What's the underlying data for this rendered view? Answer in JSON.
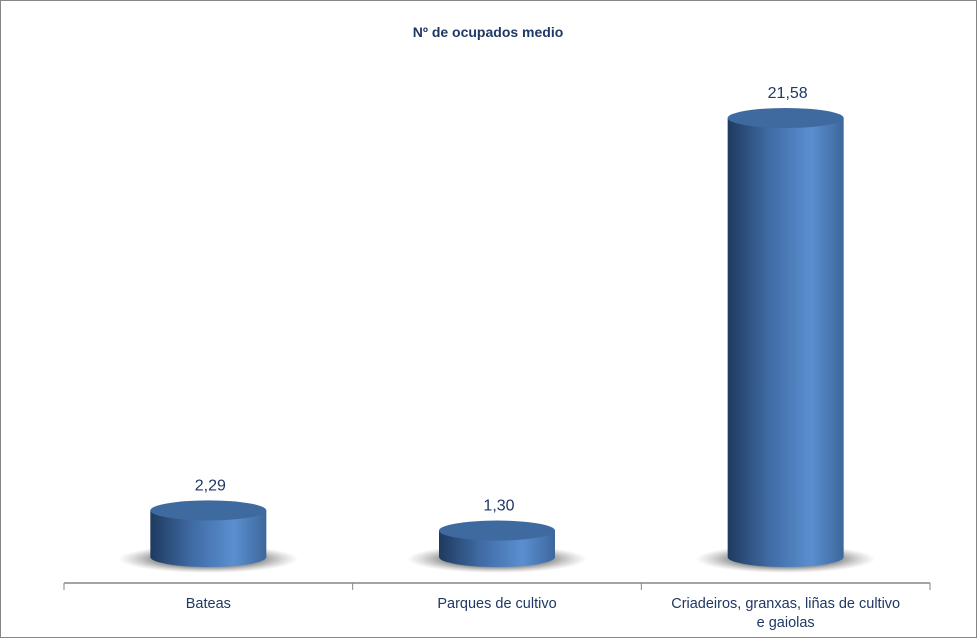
{
  "chart_data": {
    "type": "bar",
    "style": "3d-cylinder",
    "title": "Nº de ocupados medio",
    "categories": [
      "Bateas",
      "Parques de cultivo",
      "Criadeiros, granxas, liñas de cultivo e gaiolas"
    ],
    "category_label_lines": [
      [
        "Bateas"
      ],
      [
        "Parques de cultivo"
      ],
      [
        "Criadeiros, granxas, liñas de cultivo",
        "e gaiolas"
      ]
    ],
    "values": [
      2.29,
      1.3,
      21.58
    ],
    "data_labels": [
      "2,29",
      "1,30",
      "21,58"
    ],
    "xlabel": "",
    "ylabel": "",
    "ylim": [
      0,
      22
    ],
    "grid": false,
    "legend": "none",
    "colors": {
      "bar": "#4f81bd",
      "bar_dark": "#2c4f7c",
      "bar_top": "#3e6aa0",
      "text": "#1f3864",
      "axis": "#868686"
    }
  }
}
